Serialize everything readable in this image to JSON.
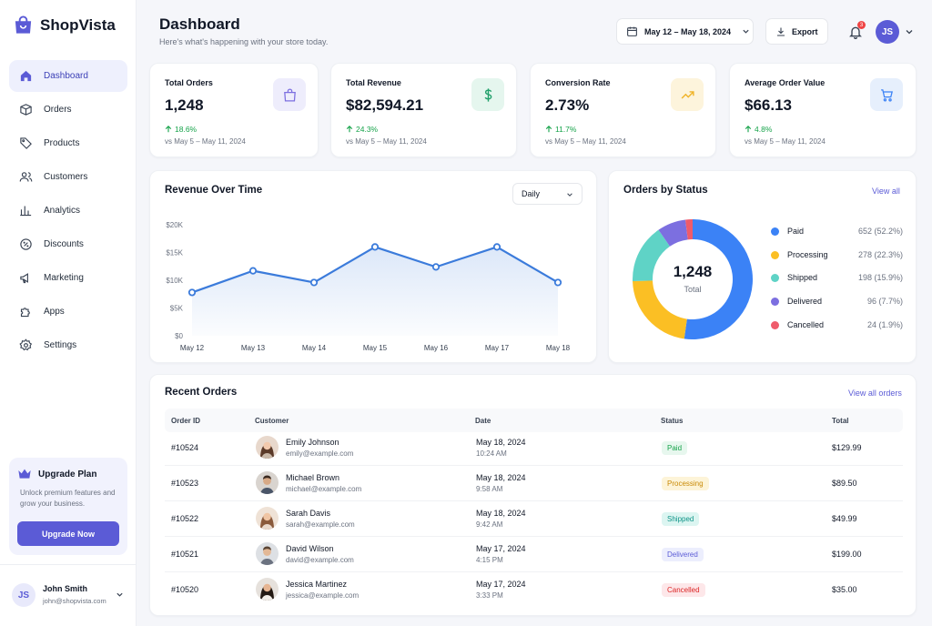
{
  "app": {
    "name": "ShopVista"
  },
  "sidebar": {
    "items": [
      {
        "label": "Dashboard",
        "icon": "home-icon"
      },
      {
        "label": "Orders",
        "icon": "box-icon"
      },
      {
        "label": "Products",
        "icon": "tag-icon"
      },
      {
        "label": "Customers",
        "icon": "users-icon"
      },
      {
        "label": "Analytics",
        "icon": "bar-chart-icon"
      },
      {
        "label": "Discounts",
        "icon": "discount-icon"
      },
      {
        "label": "Marketing",
        "icon": "megaphone-icon"
      },
      {
        "label": "Apps",
        "icon": "puzzle-icon"
      },
      {
        "label": "Settings",
        "icon": "gear-icon"
      }
    ],
    "upgrade": {
      "title": "Upgrade Plan",
      "text": "Unlock premium features and grow your business.",
      "button": "Upgrade Now"
    },
    "user": {
      "initials": "JS",
      "name": "John Smith",
      "email": "john@shopvista.com"
    }
  },
  "header": {
    "title": "Dashboard",
    "subtitle": "Here's what's happening with your store today.",
    "date_range": "May 12 – May 18, 2024",
    "export": "Export",
    "notifications": "3",
    "avatar": "JS"
  },
  "stats": [
    {
      "label": "Total Orders",
      "value": "1,248",
      "delta": "18.6%",
      "period": "vs May 5 – May 11, 2024",
      "icon": "shopping-bag-icon",
      "color": "#7c6fe0"
    },
    {
      "label": "Total Revenue",
      "value": "$82,594.21",
      "delta": "24.3%",
      "period": "vs May 5 – May 11, 2024",
      "icon": "dollar-icon",
      "color": "#22a06b"
    },
    {
      "label": "Conversion Rate",
      "value": "2.73%",
      "delta": "11.7%",
      "period": "vs May 5 – May 11, 2024",
      "icon": "trend-up-icon",
      "color": "#f0b429"
    },
    {
      "label": "Average Order Value",
      "value": "$66.13",
      "delta": "4.8%",
      "period": "vs May 5 – May 11, 2024",
      "icon": "cart-icon",
      "color": "#3b82f6"
    }
  ],
  "revenue": {
    "title": "Revenue Over Time",
    "granularity": "Daily"
  },
  "orders_status": {
    "title": "Orders by Status",
    "view_all": "View all",
    "center_value": "1,248",
    "center_label": "Total"
  },
  "chart_data": [
    {
      "type": "area",
      "title": "Revenue Over Time",
      "categories": [
        "May 12",
        "May 13",
        "May 14",
        "May 15",
        "May 16",
        "May 17",
        "May 18"
      ],
      "values": [
        7800,
        11700,
        9600,
        16000,
        12400,
        16000,
        9600
      ],
      "yticks": [
        "$0",
        "$5K",
        "$10K",
        "$15K",
        "$20K"
      ],
      "ylim": [
        0,
        20000
      ],
      "color": "#3b7bdb"
    },
    {
      "type": "pie",
      "title": "Orders by Status",
      "series": [
        {
          "name": "Paid",
          "value": 652,
          "label": "652 (52.2%)",
          "color": "#3b82f6"
        },
        {
          "name": "Processing",
          "value": 278,
          "label": "278 (22.3%)",
          "color": "#fbbf24"
        },
        {
          "name": "Shipped",
          "value": 198,
          "label": "198 (15.9%)",
          "color": "#5fd3c6"
        },
        {
          "name": "Delivered",
          "value": 96,
          "label": "96 (7.7%)",
          "color": "#7c6fe0"
        },
        {
          "name": "Cancelled",
          "value": 24,
          "label": "24 (1.9%)",
          "color": "#ef5b6b"
        }
      ]
    }
  ],
  "recent_orders": {
    "title": "Recent Orders",
    "view_all": "View all orders",
    "columns": [
      "Order ID",
      "Customer",
      "Date",
      "Status",
      "Total"
    ],
    "rows": [
      {
        "id": "#10524",
        "name": "Emily Johnson",
        "email": "emily@example.com",
        "date": "May 18, 2024",
        "time": "10:24 AM",
        "status": "Paid",
        "total": "$129.99",
        "status_color": "#16a34a",
        "status_bg": "#e7f7ee"
      },
      {
        "id": "#10523",
        "name": "Michael Brown",
        "email": "michael@example.com",
        "date": "May 18, 2024",
        "time": "9:58 AM",
        "status": "Processing",
        "total": "$89.50",
        "status_color": "#c98a06",
        "status_bg": "#fdf4d8"
      },
      {
        "id": "#10522",
        "name": "Sarah Davis",
        "email": "sarah@example.com",
        "date": "May 18, 2024",
        "time": "9:42 AM",
        "status": "Shipped",
        "total": "$49.99",
        "status_color": "#0f9488",
        "status_bg": "#dcf5f1"
      },
      {
        "id": "#10521",
        "name": "David Wilson",
        "email": "david@example.com",
        "date": "May 17, 2024",
        "time": "4:15 PM",
        "status": "Delivered",
        "total": "$199.00",
        "status_color": "#5b5bd6",
        "status_bg": "#eceefd"
      },
      {
        "id": "#10520",
        "name": "Jessica Martinez",
        "email": "jessica@example.com",
        "date": "May 17, 2024",
        "time": "3:33 PM",
        "status": "Cancelled",
        "total": "$35.00",
        "status_color": "#dc2626",
        "status_bg": "#fde7e9"
      }
    ]
  }
}
